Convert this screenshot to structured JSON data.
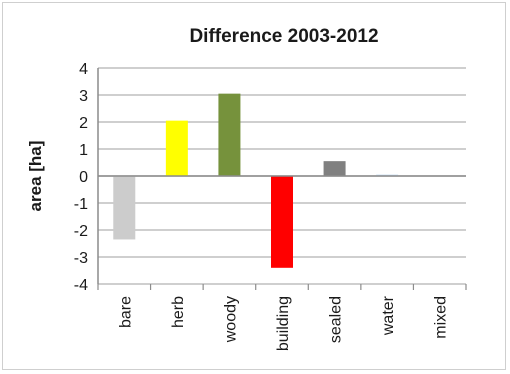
{
  "chart_data": {
    "type": "bar",
    "title": "Difference 2003-2012",
    "xlabel": "",
    "ylabel": "area [ha]",
    "ylim": [
      -4,
      4
    ],
    "yticks": [
      4,
      3,
      2,
      1,
      0,
      -1,
      -2,
      -3,
      -4
    ],
    "grid": true,
    "legend": "none",
    "categories": [
      "bare",
      "herb",
      "woody",
      "building",
      "sealed",
      "water",
      "mixed"
    ],
    "values": [
      -2.35,
      2.05,
      3.05,
      -3.4,
      0.55,
      0.05,
      0.0
    ],
    "colors": [
      "#cccccc",
      "#ffff00",
      "#76923c",
      "#ff0000",
      "#808080",
      "#bdd7ee",
      "#ffffff"
    ]
  }
}
